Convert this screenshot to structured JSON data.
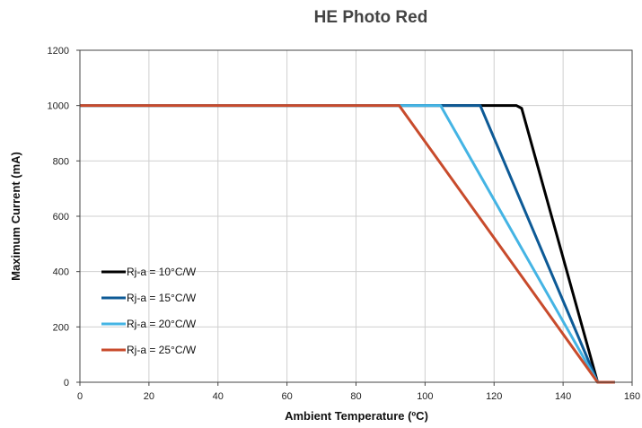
{
  "chart_data": {
    "type": "line",
    "title": "HE Photo Red",
    "xlabel": "Ambient Temperature (ºC)",
    "ylabel": "Maximum Current (mA)",
    "xlim": [
      0,
      160
    ],
    "ylim": [
      0,
      1200
    ],
    "xticks": [
      "0",
      "20",
      "40",
      "60",
      "80",
      "100",
      "120",
      "140",
      "160"
    ],
    "yticks": [
      "0",
      "200",
      "400",
      "600",
      "800",
      "1000",
      "1200"
    ],
    "grid": true,
    "legend_position": "lower-left",
    "series": [
      {
        "name": "Rj-a = 10°C/W",
        "color": "#000000",
        "x": [
          0,
          126.5,
          128,
          150,
          155
        ],
        "y": [
          1000,
          1000,
          990,
          0,
          0
        ]
      },
      {
        "name": "Rj-a = 15°C/W",
        "color": "#0d5a96",
        "x": [
          0,
          116,
          150,
          155
        ],
        "y": [
          1000,
          1000,
          0,
          0
        ]
      },
      {
        "name": "Rj-a = 20°C/W",
        "color": "#44b4e4",
        "x": [
          0,
          104.5,
          150,
          155
        ],
        "y": [
          1000,
          1000,
          0,
          0
        ]
      },
      {
        "name": "Rj-a = 25°C/W",
        "color": "#c84b2c",
        "x": [
          0,
          92.5,
          150,
          155
        ],
        "y": [
          1000,
          1000,
          0,
          0
        ]
      }
    ]
  }
}
